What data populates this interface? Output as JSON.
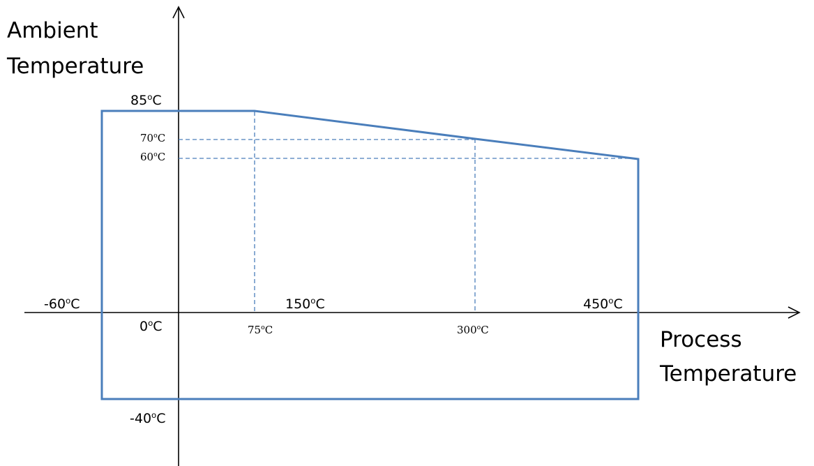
{
  "axes": {
    "y_label_line1": "Ambient",
    "y_label_line2": "Temperature",
    "x_label_line1": "Process",
    "x_label_line2": "Temperature"
  },
  "labels": {
    "y_85": {
      "num": "85",
      "deg": "o",
      "unit": "C"
    },
    "y_70": {
      "num": "70",
      "deg": "o",
      "unit": "C"
    },
    "y_60": {
      "num": "60",
      "deg": "o",
      "unit": "C"
    },
    "y_0": {
      "num": "0",
      "deg": "o",
      "unit": "C"
    },
    "y_neg40": {
      "num": "-40",
      "deg": "o",
      "unit": "C"
    },
    "x_neg60": {
      "num": "-60",
      "deg": "o",
      "unit": "C"
    },
    "x_75": {
      "num": "75",
      "deg": "o",
      "unit": "C"
    },
    "x_150": {
      "num": "150",
      "deg": "o",
      "unit": "C"
    },
    "x_300": {
      "num": "300",
      "deg": "o",
      "unit": "C"
    },
    "x_450": {
      "num": "450",
      "deg": "o",
      "unit": "C"
    }
  },
  "operating_region": {
    "boundary": [
      {
        "process": -60,
        "ambient": 85
      },
      {
        "process": 75,
        "ambient": 85
      },
      {
        "process": 300,
        "ambient": 70
      },
      {
        "process": 450,
        "ambient": 60
      },
      {
        "process": 450,
        "ambient": -40
      },
      {
        "process": -60,
        "ambient": -40
      }
    ]
  },
  "colors": {
    "axis": "#000000",
    "boundary": "#4a7ebb",
    "guide": "#4a7ebb"
  }
}
